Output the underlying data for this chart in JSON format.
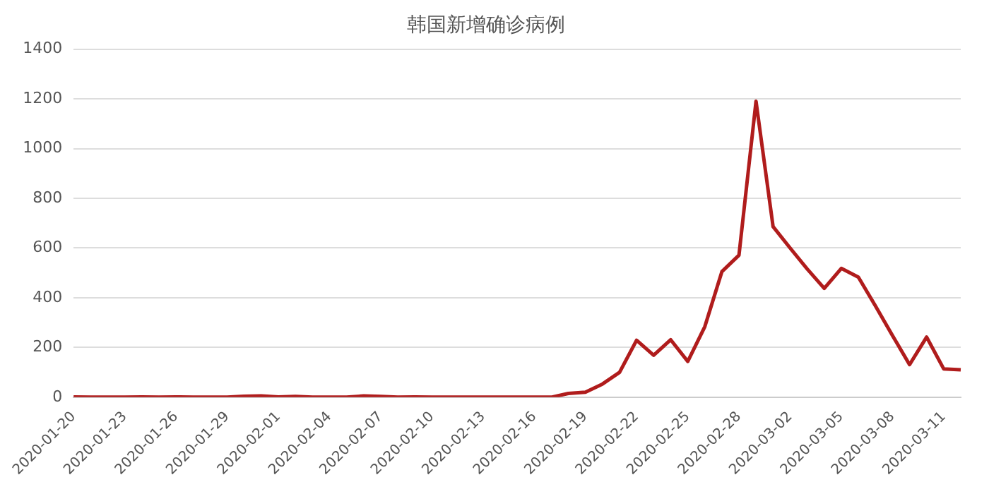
{
  "chart_data": {
    "type": "line",
    "title": "韩国新增确诊病例",
    "categories": [
      "2020-01-20",
      null,
      null,
      "2020-01-23",
      null,
      null,
      "2020-01-26",
      null,
      null,
      "2020-01-29",
      null,
      null,
      "2020-02-01",
      null,
      null,
      "2020-02-04",
      null,
      null,
      "2020-02-07",
      null,
      null,
      "2020-02-10",
      null,
      null,
      "2020-02-13",
      null,
      null,
      "2020-02-16",
      null,
      null,
      "2020-02-19",
      null,
      null,
      "2020-02-22",
      null,
      null,
      "2020-02-25",
      null,
      null,
      "2020-02-28",
      null,
      null,
      "2020-03-02",
      null,
      null,
      "2020-03-05",
      null,
      null,
      "2020-03-08",
      null,
      null,
      "2020-03-11",
      null
    ],
    "series": [
      {
        "color": "#b01c1c",
        "values": [
          1,
          0,
          0,
          0,
          1,
          0,
          1,
          0,
          0,
          0,
          4,
          5,
          1,
          3,
          0,
          0,
          0,
          5,
          3,
          0,
          1,
          0,
          0,
          0,
          0,
          0,
          0,
          0,
          0,
          15,
          20,
          53,
          100,
          229,
          169,
          231,
          144,
          284,
          505,
          571,
          1190,
          686,
          600,
          516,
          438,
          518,
          483,
          367,
          248,
          131,
          242,
          114,
          110
        ]
      }
    ],
    "ylim": [
      0,
      1400
    ],
    "yticks": [
      0,
      200,
      400,
      600,
      800,
      1000,
      1200,
      1400
    ],
    "grid": "y",
    "legend": false,
    "marker": "none",
    "line_style": "solid"
  }
}
